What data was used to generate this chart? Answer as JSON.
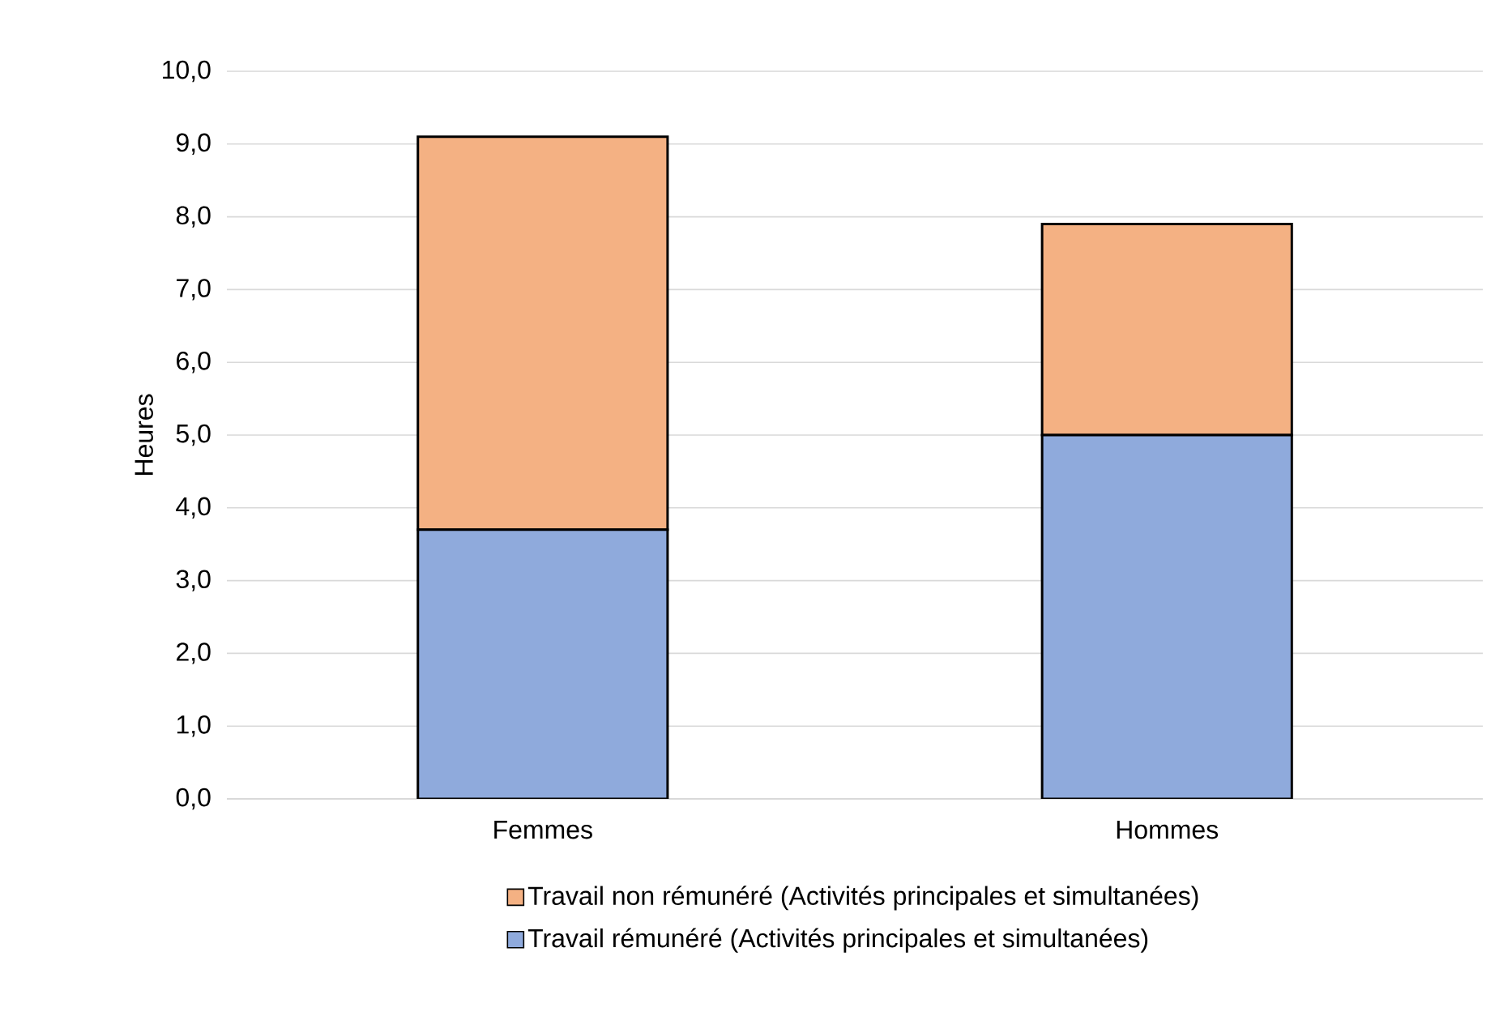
{
  "chart_data": {
    "type": "bar",
    "stacked": true,
    "ylabel": "Heures",
    "categories": [
      "Femmes",
      "Hommes"
    ],
    "series": [
      {
        "name": "Travail rémunéré (Activités principales et simultanées)",
        "color": "#8faadc",
        "values": [
          3.7,
          5.0
        ]
      },
      {
        "name": "Travail non rémunéré (Activités principales et simultanées)",
        "color": "#f4b183",
        "values": [
          5.4,
          2.9
        ]
      }
    ],
    "ylim": [
      0,
      10
    ],
    "yticks": [
      {
        "value": 0,
        "label": "0,0"
      },
      {
        "value": 1,
        "label": "1,0"
      },
      {
        "value": 2,
        "label": "2,0"
      },
      {
        "value": 3,
        "label": "3,0"
      },
      {
        "value": 4,
        "label": "4,0"
      },
      {
        "value": 5,
        "label": "5,0"
      },
      {
        "value": 6,
        "label": "6,0"
      },
      {
        "value": 7,
        "label": "7,0"
      },
      {
        "value": 8,
        "label": "8,0"
      },
      {
        "value": 9,
        "label": "9,0"
      },
      {
        "value": 10,
        "label": "10,0"
      }
    ],
    "grid": "y",
    "legend": "bottom"
  }
}
